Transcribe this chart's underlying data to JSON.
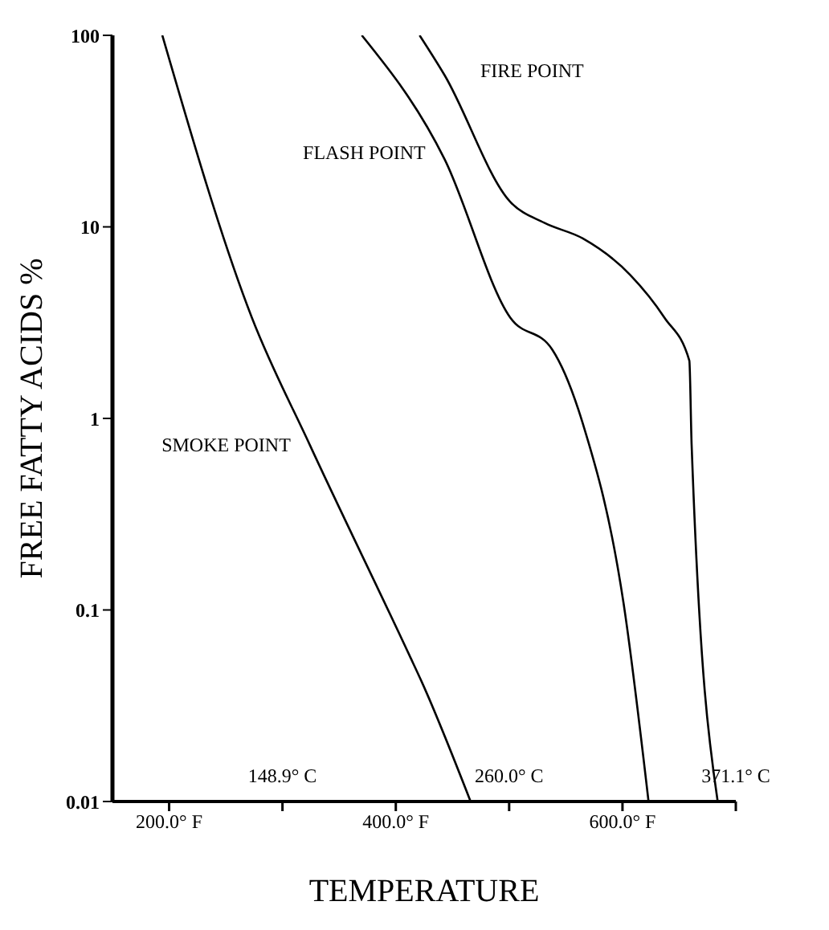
{
  "chart_data": {
    "type": "line",
    "xlabel": "TEMPERATURE",
    "ylabel": "FREE FATTY ACIDS %",
    "log": "y",
    "marker": "none",
    "line_style": "solid",
    "xlim": [
      150,
      700
    ],
    "xticks": [
      {
        "value": 200,
        "label": "200.0° F"
      },
      {
        "value": 300,
        "label": null
      },
      {
        "value": 400,
        "label": "400.0° F"
      },
      {
        "value": 500,
        "label": null
      },
      {
        "value": 600,
        "label": "600.0° F"
      },
      {
        "value": 700,
        "label": null
      }
    ],
    "x2lim": [
      65.6,
      371.1
    ],
    "x2ticks": [
      {
        "value": 148.9,
        "label": "148.9° C"
      },
      {
        "value": 260,
        "label": "260.0° C"
      },
      {
        "value": 371.1,
        "label": "371.1° C"
      }
    ],
    "ylim": [
      0.01,
      100
    ],
    "yticks": [
      0.01,
      0.1,
      1,
      10,
      100
    ],
    "series": [
      {
        "name": "SMOKE POINT",
        "color": "#000000",
        "x": [
          194,
          273,
          324,
          412,
          423,
          466
        ],
        "values": [
          100,
          3.36,
          0.73,
          0.058,
          0.042,
          0.01
        ]
      },
      {
        "name": "FLASH POINT",
        "color": "#000000",
        "x": [
          370,
          443,
          501,
          538,
          565,
          601,
          623
        ],
        "values": [
          100,
          22.6,
          3.36,
          2.29,
          0.94,
          0.108,
          0.01
        ]
      },
      {
        "name": "FIRE POINT",
        "color": "#000000",
        "x": [
          421,
          443,
          501,
          531,
          565,
          607,
          637,
          659,
          661,
          684
        ],
        "values": [
          100,
          62,
          13.5,
          10.5,
          8.7,
          5.6,
          3.36,
          2.0,
          0.73,
          0.01
        ]
      }
    ]
  }
}
